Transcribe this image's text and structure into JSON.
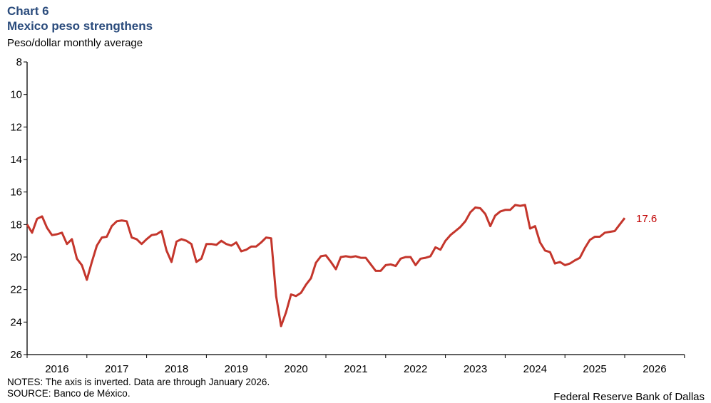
{
  "header": {
    "chart_number": "Chart 6",
    "title": "Mexico peso strengthens",
    "subtitle": "Peso/dollar monthly  average"
  },
  "footer": {
    "notes": "NOTES: The axis is inverted. Data are through January 2026.",
    "source": "SOURCE: Banco de México.",
    "credit": "Federal Reserve Bank of Dallas"
  },
  "colors": {
    "title": "#2a4b7c",
    "line": "#c4362c",
    "end_label": "#c00000"
  },
  "chart_data": {
    "type": "line",
    "title": "Mexico peso strengthens",
    "ylabel": "Peso/dollar monthly  average",
    "y_inverted": true,
    "ylim": [
      8,
      26
    ],
    "yticks": [
      8,
      10,
      12,
      14,
      16,
      18,
      20,
      22,
      24,
      26
    ],
    "xlim": [
      "2016-01",
      "2027-01"
    ],
    "xtick_labels": [
      "2016",
      "2017",
      "2018",
      "2019",
      "2020",
      "2021",
      "2022",
      "2023",
      "2024",
      "2025",
      "2026"
    ],
    "grid": false,
    "start": "2016-01",
    "frequency": "monthly",
    "end_label": "17.6",
    "series": [
      {
        "values": [
          18.0,
          18.5,
          17.65,
          17.5,
          18.2,
          18.65,
          18.6,
          18.5,
          19.2,
          18.9,
          20.1,
          20.5,
          21.4,
          20.3,
          19.3,
          18.8,
          18.75,
          18.1,
          17.8,
          17.75,
          17.8,
          18.8,
          18.9,
          19.2,
          18.9,
          18.65,
          18.6,
          18.4,
          19.6,
          20.3,
          19.05,
          18.9,
          19.0,
          19.2,
          20.3,
          20.1,
          19.2,
          19.2,
          19.25,
          19.0,
          19.2,
          19.3,
          19.1,
          19.65,
          19.55,
          19.35,
          19.35,
          19.1,
          18.8,
          18.85,
          22.4,
          24.25,
          23.4,
          22.3,
          22.4,
          22.2,
          21.7,
          21.3,
          20.35,
          19.95,
          19.9,
          20.3,
          20.75,
          20.0,
          19.95,
          20.0,
          19.95,
          20.05,
          20.05,
          20.45,
          20.85,
          20.85,
          20.5,
          20.45,
          20.55,
          20.1,
          20.0,
          20.0,
          20.5,
          20.1,
          20.05,
          19.95,
          19.4,
          19.55,
          19.0,
          18.65,
          18.4,
          18.15,
          17.8,
          17.25,
          16.95,
          17.0,
          17.35,
          18.1,
          17.45,
          17.2,
          17.1,
          17.1,
          16.8,
          16.85,
          16.8,
          18.25,
          18.1,
          19.1,
          19.6,
          19.7,
          20.4,
          20.3,
          20.5,
          20.4,
          20.2,
          20.05,
          19.45,
          18.95,
          18.75,
          18.75,
          18.5,
          18.45,
          18.4,
          18.0,
          17.6
        ]
      }
    ]
  }
}
